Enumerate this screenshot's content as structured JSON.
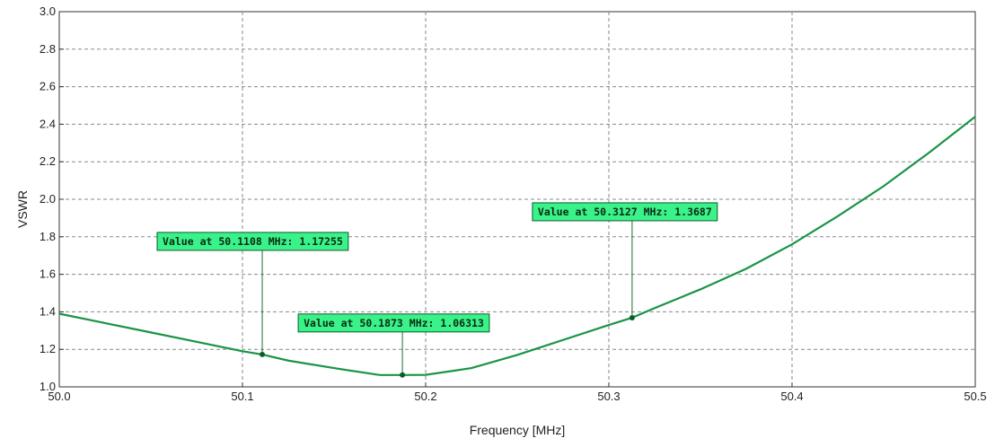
{
  "chart_data": {
    "type": "line",
    "title": "",
    "xlabel": "Frequency [MHz]",
    "ylabel": "VSWR",
    "xlim": [
      50.0,
      50.5
    ],
    "ylim": [
      1.0,
      3.0
    ],
    "grid": true,
    "x_ticks": [
      "50.0",
      "50.1",
      "50.2",
      "50.3",
      "50.4",
      "50.5"
    ],
    "y_ticks": [
      "1.0",
      "1.2",
      "1.4",
      "1.6",
      "1.8",
      "2.0",
      "2.2",
      "2.4",
      "2.6",
      "2.8",
      "3.0"
    ],
    "colors": {
      "line": "#1a9446",
      "annotation_fill": "#3af28a",
      "grid": "#8a8a8a"
    },
    "series": [
      {
        "x": [
          50.0,
          50.025,
          50.05,
          50.075,
          50.1,
          50.1108,
          50.125,
          50.15,
          50.175,
          50.1873,
          50.2,
          50.225,
          50.25,
          50.275,
          50.3,
          50.3127,
          50.325,
          50.35,
          50.375,
          50.4,
          50.425,
          50.45,
          50.475,
          50.5
        ],
        "y": [
          1.39,
          1.34,
          1.29,
          1.24,
          1.19,
          1.17255,
          1.14,
          1.1,
          1.063,
          1.06313,
          1.064,
          1.1,
          1.17,
          1.25,
          1.33,
          1.3687,
          1.42,
          1.52,
          1.63,
          1.76,
          1.91,
          2.07,
          2.25,
          2.44
        ]
      }
    ],
    "annotations": [
      {
        "text": "Value at 50.1108 MHz: 1.17255",
        "x": 50.1108,
        "y": 1.17255
      },
      {
        "text": "Value at 50.1873 MHz: 1.06313",
        "x": 50.1873,
        "y": 1.06313
      },
      {
        "text": "Value at 50.3127 MHz: 1.3687",
        "x": 50.3127,
        "y": 1.3687
      }
    ]
  }
}
